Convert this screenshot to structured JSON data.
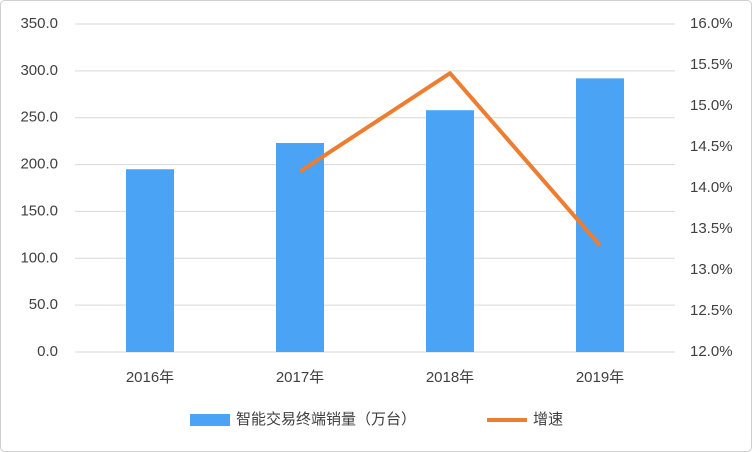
{
  "chart_data": {
    "type": "bar",
    "categories": [
      "2016年",
      "2017年",
      "2018年",
      "2019年"
    ],
    "series": [
      {
        "name": "智能交易终端销量（万台）",
        "color": "#4aa3f5",
        "values": [
          195,
          223,
          258,
          292
        ]
      },
      {
        "name": "增速",
        "color": "#ed7d31",
        "type": "line",
        "axis": "y2",
        "values": [
          null,
          14.2,
          15.4,
          13.3
        ]
      }
    ],
    "ylim": [
      0,
      350
    ],
    "yticks": [
      {
        "value": 0,
        "label": "0.0"
      },
      {
        "value": 50,
        "label": "50.0"
      },
      {
        "value": 100,
        "label": "100.0"
      },
      {
        "value": 150,
        "label": "150.0"
      },
      {
        "value": 200,
        "label": "200.0"
      },
      {
        "value": 250,
        "label": "250.0"
      },
      {
        "value": 300,
        "label": "300.0"
      },
      {
        "value": 350,
        "label": "350.0"
      }
    ],
    "y2lim": [
      12,
      16
    ],
    "y2ticks": [
      {
        "value": 12,
        "label": "12.0%"
      },
      {
        "value": 12.5,
        "label": "12.5%"
      },
      {
        "value": 13,
        "label": "13.0%"
      },
      {
        "value": 13.5,
        "label": "13.5%"
      },
      {
        "value": 14,
        "label": "14.0%"
      },
      {
        "value": 14.5,
        "label": "14.5%"
      },
      {
        "value": 15,
        "label": "15.0%"
      },
      {
        "value": 15.5,
        "label": "15.5%"
      },
      {
        "value": 16,
        "label": "16.0%"
      }
    ],
    "grid": true,
    "legend": "bottom"
  }
}
